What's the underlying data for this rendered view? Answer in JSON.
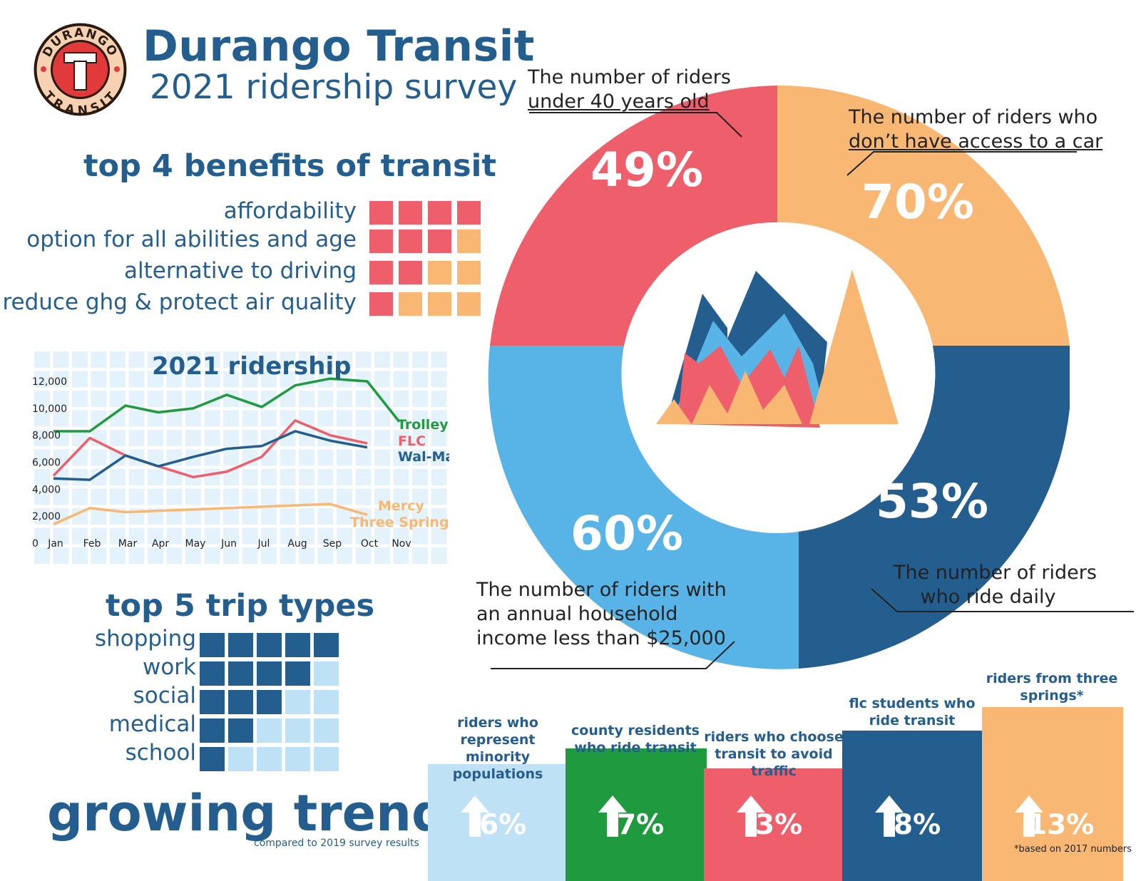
{
  "header": {
    "title": "Durango Transit",
    "subtitle": "2021 ridership survey",
    "logo": {
      "top_text": "DURANGO",
      "bottom_text": "TRANSIT",
      "letter": "T"
    }
  },
  "benefits": {
    "title": "top 4 benefits of transit",
    "items": [
      {
        "label": "affordability",
        "filled": 4,
        "total": 4
      },
      {
        "label": "option for all abilities and age",
        "filled": 3,
        "total": 4
      },
      {
        "label": "alternative to driving",
        "filled": 2,
        "total": 4
      },
      {
        "label": "reduce ghg & protect air quality",
        "filled": 1,
        "total": 4
      }
    ],
    "colors": {
      "filled": "#ee5e6b",
      "empty": "#f8b874"
    }
  },
  "ridership_chart": {
    "title": "2021 ridership"
  },
  "chart_data": {
    "type": "line",
    "title": "2021 ridership",
    "categories": [
      "Jan",
      "Feb",
      "Mar",
      "Apr",
      "May",
      "Jun",
      "Jul",
      "Aug",
      "Sep",
      "Oct",
      "Nov"
    ],
    "y_ticks": [
      "12,000",
      "10,000",
      "8,000",
      "6,000",
      "4,000",
      "2,000",
      "0"
    ],
    "ylim": [
      0,
      12000
    ],
    "series": [
      {
        "name": "Trolley",
        "color": "#1f9a3f",
        "values": [
          8300,
          8300,
          10200,
          9700,
          10000,
          11000,
          10100,
          11700,
          12200,
          12000,
          9000
        ]
      },
      {
        "name": "FLC",
        "color": "#ee5e6b",
        "values": [
          5000,
          7800,
          6500,
          5700,
          4900,
          5300,
          6400,
          9100,
          8000,
          7400,
          null
        ]
      },
      {
        "name": "Wal-Mart",
        "color": "#245e8f",
        "values": [
          4800,
          4700,
          6500,
          5700,
          6400,
          7000,
          7200,
          8300,
          7600,
          7100,
          null
        ]
      },
      {
        "name": "Mercy Three Springs",
        "color": "#f8b874",
        "values": [
          1400,
          2600,
          2300,
          2400,
          2500,
          2600,
          2700,
          2800,
          2900,
          2100,
          null
        ]
      }
    ],
    "series_labels": [
      "Trolley",
      "FLC",
      "Wal-Mart",
      "Mercy",
      "Three Springs"
    ]
  },
  "trips": {
    "title": "top 5 trip types",
    "items": [
      {
        "label": "shopping",
        "filled": 5,
        "total": 5
      },
      {
        "label": "work",
        "filled": 4,
        "total": 5
      },
      {
        "label": "social",
        "filled": 3,
        "total": 5
      },
      {
        "label": "medical",
        "filled": 2,
        "total": 5
      },
      {
        "label": "school",
        "filled": 1,
        "total": 5
      }
    ],
    "colors": {
      "filled": "#245e8f",
      "empty": "#bfe1f6"
    }
  },
  "donut": {
    "segments": [
      {
        "pct": "49%",
        "label_line1": "The number of riders",
        "label_line2": "under 40 years old",
        "color": "#ee5e6b"
      },
      {
        "pct": "70%",
        "label_line1": "The number of riders who",
        "label_line2": "don’t have access to a car",
        "color": "#f8b874"
      },
      {
        "pct": "53%",
        "label_line1": "The number of riders",
        "label_line2": "who ride daily",
        "color": "#245e8f"
      },
      {
        "pct": "60%",
        "label_line1": "The number of riders with",
        "label_line2": "an annual household",
        "label_line3": "income less than $25,000",
        "color": "#58b4e6"
      }
    ]
  },
  "trends": {
    "title": "growing trends",
    "subtitle": "compared to 2019 survey results",
    "items": [
      {
        "label": "riders who represent minority populations",
        "value": "6%",
        "color": "#bfe1f6"
      },
      {
        "label": "county residents who ride transit",
        "value": "7%",
        "color": "#1f9a3f"
      },
      {
        "label": "riders who choose transit to avoid traffic",
        "value": "3%",
        "color": "#ee5e6b"
      },
      {
        "label": "flc students who ride transit",
        "value": "8%",
        "color": "#245e8f"
      },
      {
        "label": "riders from three springs*",
        "value": "13%",
        "color": "#f8b874"
      }
    ],
    "footnote": "*based on 2017 numbers"
  }
}
